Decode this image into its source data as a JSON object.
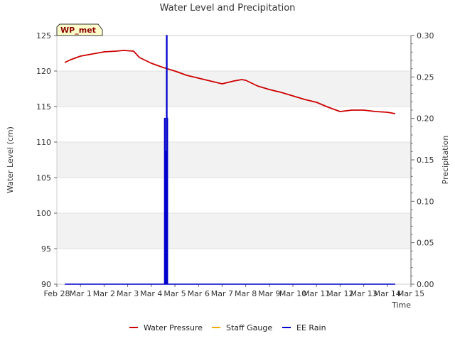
{
  "chart_data": {
    "type": "line",
    "title": "Water Level and Precipitation",
    "site_label": "WP_met",
    "xlabel": "Time",
    "ylabel_left": "Water Level (cm)",
    "ylabel_right": "Precipitation",
    "x_ticks": [
      "Feb 28",
      "Mar 1",
      "Mar 2",
      "Mar 3",
      "Mar 4",
      "Mar 5",
      "Mar 6",
      "Mar 7",
      "Mar 8",
      "Mar 9",
      "Mar 10",
      "Mar 11",
      "Mar 12",
      "Mar 13",
      "Mar 14",
      "Mar 15"
    ],
    "xlim": [
      "Feb 28",
      "Mar 15"
    ],
    "ylim_left": [
      90,
      125
    ],
    "y_ticks_left": [
      90,
      95,
      100,
      105,
      110,
      115,
      120,
      125
    ],
    "ylim_right": [
      0.0,
      0.3
    ],
    "y_ticks_right": [
      "0.00",
      "0.05",
      "0.10",
      "0.15",
      "0.20",
      "0.25",
      "0.30"
    ],
    "grid": "horizontal bands",
    "legend_position": "bottom",
    "series": [
      {
        "name": "Water Pressure",
        "color": "#cc0000",
        "axis": "left",
        "x": [
          "Feb 28 08:00",
          "Feb 28 14:00",
          "Mar 1 00:00",
          "Mar 1 12:00",
          "Mar 2 00:00",
          "Mar 2 12:00",
          "Mar 2 20:00",
          "Mar 3 06:00",
          "Mar 3 12:00",
          "Mar 4 00:00",
          "Mar 4 12:00",
          "Mar 5 00:00",
          "Mar 5 12:00",
          "Mar 6 00:00",
          "Mar 6 12:00",
          "Mar 7 00:00",
          "Mar 7 12:00",
          "Mar 7 20:00",
          "Mar 8 00:00",
          "Mar 8 12:00",
          "Mar 9 00:00",
          "Mar 9 12:00",
          "Mar 10 00:00",
          "Mar 10 12:00",
          "Mar 11 00:00",
          "Mar 11 12:00",
          "Mar 12 00:00",
          "Mar 12 12:00",
          "Mar 13 00:00",
          "Mar 13 12:00",
          "Mar 14 00:00",
          "Mar 14 08:00"
        ],
        "y": [
          121.2,
          121.6,
          122.1,
          122.4,
          122.7,
          122.8,
          122.9,
          122.8,
          121.9,
          121.1,
          120.5,
          120.0,
          119.4,
          119.0,
          118.6,
          118.2,
          118.6,
          118.8,
          118.7,
          117.9,
          117.4,
          117.0,
          116.5,
          116.0,
          115.6,
          114.9,
          114.3,
          114.5,
          114.5,
          114.3,
          114.2,
          114.0
        ]
      },
      {
        "name": "Staff Gauge",
        "color": "#f2a900",
        "axis": "left",
        "x": [],
        "y": []
      },
      {
        "name": "EE Rain",
        "color": "#0000cc",
        "axis": "right",
        "x": [
          "Feb 28 08:00",
          "Mar 4 13:00",
          "Mar 4 13:30",
          "Mar 4 14:00",
          "Mar 4 14:30",
          "Mar 4 15:00",
          "Mar 4 15:30",
          "Mar 4 16:00",
          "Mar 4 16:30",
          "Mar 14 08:00"
        ],
        "y": [
          0.0,
          0.0,
          0.2,
          0.0,
          0.16,
          0.0,
          0.3,
          0.2,
          0.0,
          0.0
        ]
      }
    ]
  }
}
